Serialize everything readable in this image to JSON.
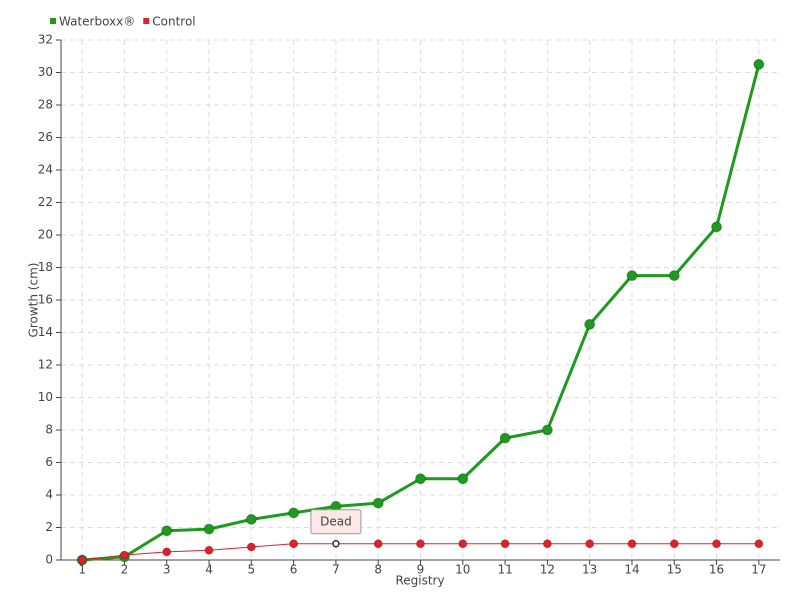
{
  "chart_data": {
    "type": "line",
    "x_label": "Registry",
    "y_label": "Growth (cm)",
    "categories": [
      "1",
      "2",
      "3",
      "4",
      "5",
      "6",
      "7",
      "8",
      "9",
      "10",
      "11",
      "12",
      "13",
      "14",
      "15",
      "16",
      "17"
    ],
    "series": [
      {
        "name": "Waterboxx®",
        "color": "#1e9a1e",
        "values": [
          0,
          0.2,
          1.8,
          1.9,
          2.5,
          2.9,
          3.3,
          3.5,
          5,
          5,
          7.5,
          8,
          14.5,
          17.5,
          17.5,
          20.5,
          30.5
        ]
      },
      {
        "name": "Control",
        "color": "#e0202a",
        "values": [
          0,
          0.3,
          0.5,
          0.6,
          0.8,
          1,
          1,
          1,
          1,
          1,
          1,
          1,
          1,
          1,
          1,
          1,
          1
        ],
        "point_labels": [
          null,
          null,
          null,
          null,
          null,
          null,
          "Dead",
          null,
          null,
          null,
          null,
          null,
          null,
          null,
          null,
          null,
          null
        ]
      }
    ],
    "ylim": [
      0,
      32
    ],
    "yticks": [
      0,
      2,
      4,
      6,
      8,
      10,
      12,
      14,
      16,
      18,
      20,
      22,
      24,
      26,
      28,
      30,
      32
    ],
    "grid": true
  }
}
